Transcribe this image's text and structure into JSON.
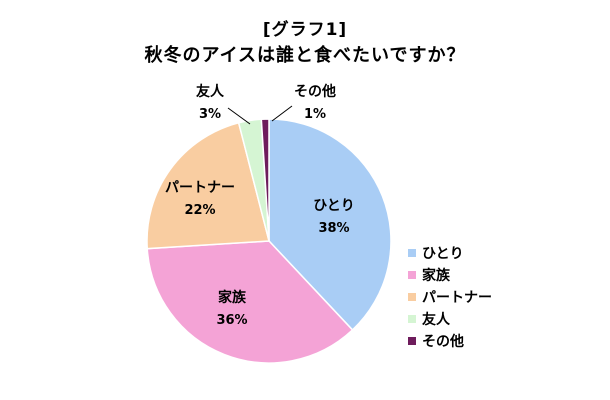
{
  "chart_data": {
    "type": "pie",
    "title": "[グラフ1]",
    "subtitle": "秋冬のアイスは誰と食べたいですか？",
    "legend_position": "right",
    "slices": [
      {
        "label": "ひとり",
        "value": 38,
        "value_label": "38%",
        "color": "#A9CDF5"
      },
      {
        "label": "家族",
        "value": 36,
        "value_label": "36%",
        "color": "#F4A3D6"
      },
      {
        "label": "パートナー",
        "value": 22,
        "value_label": "22%",
        "color": "#F9CDA1"
      },
      {
        "label": "友人",
        "value": 3,
        "value_label": "3%",
        "color": "#D5F5D3"
      },
      {
        "label": "その他",
        "value": 1,
        "value_label": "1%",
        "color": "#6E1C5C"
      }
    ]
  }
}
